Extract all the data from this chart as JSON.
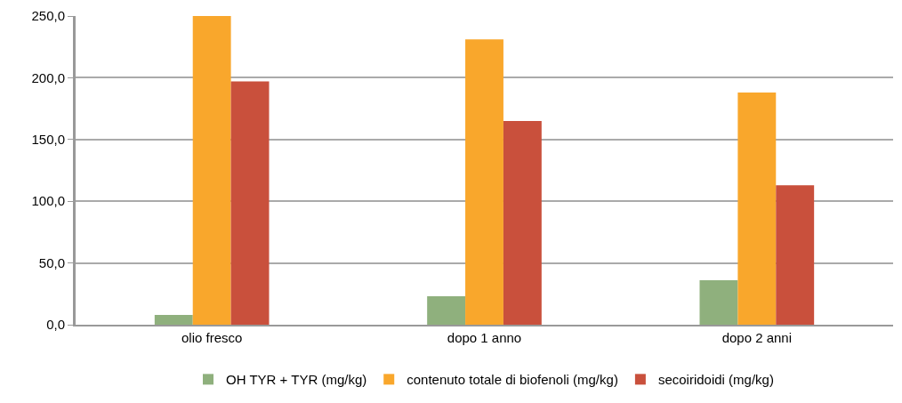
{
  "chart_data": {
    "type": "bar",
    "categories": [
      "olio fresco",
      "dopo 1 anno",
      "dopo 2 anni"
    ],
    "series": [
      {
        "name": "OH TYR + TYR (mg/kg)",
        "color": "#8fb07d",
        "values": [
          8,
          23,
          36
        ]
      },
      {
        "name": "contenuto totale di biofenoli (mg/kg)",
        "color": "#f9a72c",
        "values": [
          250,
          231,
          188
        ]
      },
      {
        "name": "secoiridoidi (mg/kg)",
        "color": "#c9503c",
        "values": [
          197,
          165,
          113
        ]
      }
    ],
    "ylim": [
      0,
      250
    ],
    "yticks": [
      {
        "value": 0,
        "label": "0,0"
      },
      {
        "value": 50,
        "label": "50,0"
      },
      {
        "value": 100,
        "label": "100,0"
      },
      {
        "value": 150,
        "label": "150,0"
      },
      {
        "value": 200,
        "label": "200,0"
      },
      {
        "value": 250,
        "label": "250,0"
      }
    ],
    "grid": "y",
    "legend": "bottom"
  }
}
